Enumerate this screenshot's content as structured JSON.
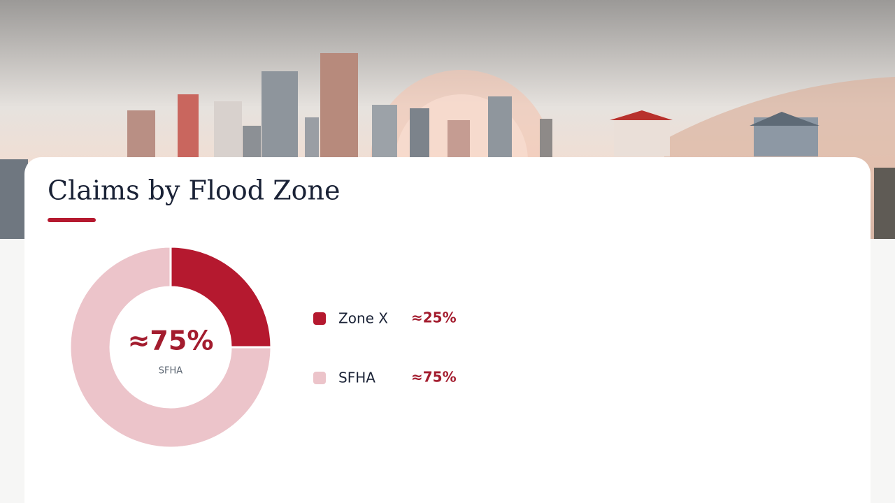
{
  "chart_data": {
    "type": "donut",
    "title": "Claims by Flood Zone",
    "categories": [
      "Zone X",
      "SFHA"
    ],
    "values": [
      25,
      75
    ],
    "value_labels": [
      "≈25%",
      "≈75%"
    ],
    "colors": [
      "#b5192f",
      "#ecc4ca"
    ],
    "legend": "right"
  }
}
